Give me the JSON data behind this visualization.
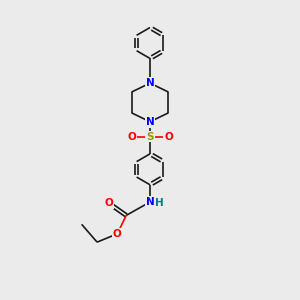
{
  "bg_color": "#ebebeb",
  "bond_color": "#1a1a1a",
  "bond_width": 1.2,
  "N_color": "#0000FF",
  "O_color": "#FF0000",
  "S_color": "#999900",
  "H_color": "#008080",
  "font_size": 7.5,
  "figsize": [
    3.0,
    3.0
  ],
  "dpi": 100,
  "xlim": [
    0,
    10
  ],
  "ylim": [
    0,
    10
  ]
}
